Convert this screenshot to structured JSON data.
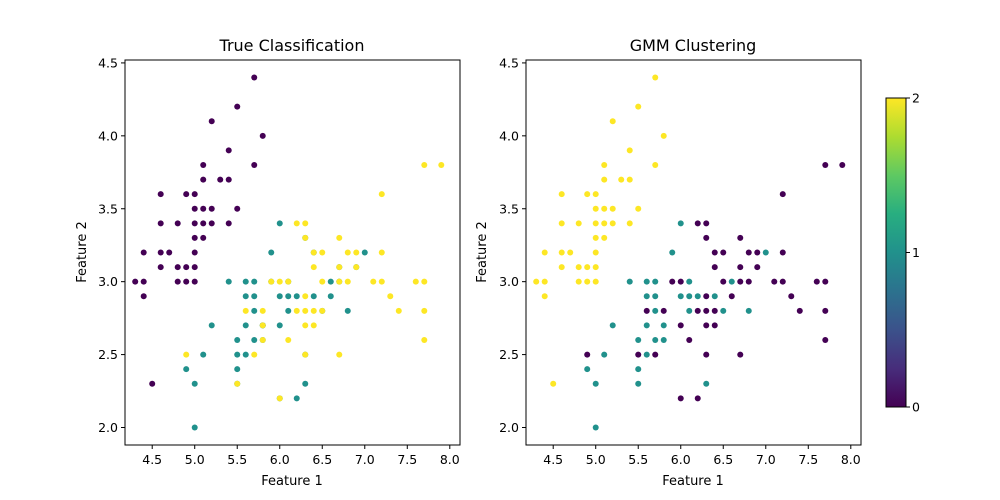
{
  "colormap": {
    "c0": "#440154",
    "c1": "#21918c",
    "c2": "#fde725",
    "ticks": [
      "0",
      "1",
      "2"
    ]
  },
  "chart_data": [
    {
      "type": "scatter",
      "title": "True Classification",
      "xlabel": "Feature 1",
      "ylabel": "Feature 2",
      "xlim": [
        4.18,
        8.12
      ],
      "ylim": [
        1.88,
        4.52
      ],
      "xticks": [
        "4.5",
        "5.0",
        "5.5",
        "6.0",
        "6.5",
        "7.0",
        "7.5",
        "8.0"
      ],
      "yticks": [
        "2.0",
        "2.5",
        "3.0",
        "3.5",
        "4.0",
        "4.5"
      ],
      "points": [
        [
          4.3,
          3.0,
          0
        ],
        [
          4.4,
          3.2,
          0
        ],
        [
          4.4,
          3.0,
          0
        ],
        [
          4.4,
          2.9,
          0
        ],
        [
          4.5,
          2.3,
          0
        ],
        [
          4.6,
          3.6,
          0
        ],
        [
          4.6,
          3.4,
          0
        ],
        [
          4.6,
          3.2,
          0
        ],
        [
          4.6,
          3.1,
          0
        ],
        [
          4.7,
          3.2,
          0
        ],
        [
          4.8,
          3.4,
          0
        ],
        [
          4.8,
          3.1,
          0
        ],
        [
          4.8,
          3.0,
          0
        ],
        [
          4.9,
          3.1,
          0
        ],
        [
          4.9,
          3.0,
          0
        ],
        [
          5.0,
          3.6,
          0
        ],
        [
          5.0,
          3.5,
          0
        ],
        [
          5.0,
          3.4,
          0
        ],
        [
          5.0,
          3.3,
          0
        ],
        [
          5.0,
          3.2,
          0
        ],
        [
          5.0,
          3.0,
          0
        ],
        [
          5.1,
          3.8,
          0
        ],
        [
          5.1,
          3.7,
          0
        ],
        [
          5.1,
          3.5,
          0
        ],
        [
          5.1,
          3.4,
          0
        ],
        [
          5.1,
          3.3,
          0
        ],
        [
          5.2,
          4.1,
          0
        ],
        [
          5.2,
          3.5,
          0
        ],
        [
          5.2,
          3.4,
          0
        ],
        [
          5.3,
          3.7,
          0
        ],
        [
          5.4,
          3.9,
          0
        ],
        [
          5.4,
          3.7,
          0
        ],
        [
          5.4,
          3.4,
          0
        ],
        [
          5.5,
          4.2,
          0
        ],
        [
          5.5,
          3.5,
          0
        ],
        [
          5.7,
          4.4,
          0
        ],
        [
          5.7,
          3.8,
          0
        ],
        [
          5.8,
          4.0,
          0
        ],
        [
          5.0,
          3.1,
          0
        ],
        [
          4.9,
          3.6,
          0
        ],
        [
          4.9,
          2.4,
          1
        ],
        [
          5.0,
          2.0,
          1
        ],
        [
          5.0,
          2.3,
          1
        ],
        [
          5.1,
          2.5,
          1
        ],
        [
          5.2,
          2.7,
          1
        ],
        [
          5.4,
          3.0,
          1
        ],
        [
          5.5,
          2.3,
          1
        ],
        [
          5.5,
          2.4,
          1
        ],
        [
          5.5,
          2.5,
          1
        ],
        [
          5.5,
          2.6,
          1
        ],
        [
          5.6,
          2.5,
          1
        ],
        [
          5.6,
          2.7,
          1
        ],
        [
          5.6,
          2.9,
          1
        ],
        [
          5.6,
          3.0,
          1
        ],
        [
          5.7,
          2.6,
          1
        ],
        [
          5.7,
          2.8,
          1
        ],
        [
          5.7,
          2.9,
          1
        ],
        [
          5.7,
          3.0,
          1
        ],
        [
          5.8,
          2.6,
          1
        ],
        [
          5.8,
          2.7,
          1
        ],
        [
          5.9,
          3.0,
          1
        ],
        [
          5.9,
          3.2,
          1
        ],
        [
          6.0,
          2.2,
          1
        ],
        [
          6.0,
          2.7,
          1
        ],
        [
          6.0,
          2.9,
          1
        ],
        [
          6.0,
          3.4,
          1
        ],
        [
          6.1,
          2.8,
          1
        ],
        [
          6.1,
          2.9,
          1
        ],
        [
          6.1,
          3.0,
          1
        ],
        [
          6.2,
          2.2,
          1
        ],
        [
          6.2,
          2.9,
          1
        ],
        [
          6.3,
          2.3,
          1
        ],
        [
          6.3,
          2.5,
          1
        ],
        [
          6.3,
          3.3,
          1
        ],
        [
          6.4,
          2.9,
          1
        ],
        [
          6.4,
          3.2,
          1
        ],
        [
          6.5,
          2.8,
          1
        ],
        [
          6.6,
          2.9,
          1
        ],
        [
          6.6,
          3.0,
          1
        ],
        [
          6.7,
          3.0,
          1
        ],
        [
          6.7,
          3.1,
          1
        ],
        [
          6.8,
          2.8,
          1
        ],
        [
          6.9,
          3.1,
          1
        ],
        [
          7.0,
          3.2,
          1
        ],
        [
          5.8,
          2.7,
          1
        ],
        [
          5.5,
          2.3,
          2
        ],
        [
          4.9,
          2.5,
          2
        ],
        [
          5.6,
          2.8,
          2
        ],
        [
          5.7,
          2.5,
          2
        ],
        [
          5.8,
          2.7,
          2
        ],
        [
          5.8,
          2.8,
          2
        ],
        [
          6.0,
          2.2,
          2
        ],
        [
          6.0,
          3.0,
          2
        ],
        [
          6.1,
          2.6,
          2
        ],
        [
          6.1,
          3.0,
          2
        ],
        [
          6.2,
          2.8,
          2
        ],
        [
          6.2,
          3.4,
          2
        ],
        [
          6.3,
          2.5,
          2
        ],
        [
          6.3,
          2.7,
          2
        ],
        [
          6.3,
          2.8,
          2
        ],
        [
          6.3,
          2.9,
          2
        ],
        [
          6.3,
          3.3,
          2
        ],
        [
          6.3,
          3.4,
          2
        ],
        [
          6.4,
          2.7,
          2
        ],
        [
          6.4,
          2.8,
          2
        ],
        [
          6.4,
          3.1,
          2
        ],
        [
          6.4,
          3.2,
          2
        ],
        [
          6.5,
          3.0,
          2
        ],
        [
          6.5,
          3.2,
          2
        ],
        [
          6.7,
          2.5,
          2
        ],
        [
          6.7,
          3.0,
          2
        ],
        [
          6.7,
          3.1,
          2
        ],
        [
          6.7,
          3.3,
          2
        ],
        [
          6.8,
          3.0,
          2
        ],
        [
          6.8,
          3.2,
          2
        ],
        [
          6.9,
          3.1,
          2
        ],
        [
          6.9,
          3.2,
          2
        ],
        [
          7.1,
          3.0,
          2
        ],
        [
          7.2,
          3.0,
          2
        ],
        [
          7.2,
          3.2,
          2
        ],
        [
          7.2,
          3.6,
          2
        ],
        [
          7.3,
          2.9,
          2
        ],
        [
          7.4,
          2.8,
          2
        ],
        [
          7.6,
          3.0,
          2
        ],
        [
          7.7,
          2.6,
          2
        ],
        [
          7.7,
          2.8,
          2
        ],
        [
          7.7,
          3.0,
          2
        ],
        [
          7.7,
          3.8,
          2
        ],
        [
          7.9,
          3.8,
          2
        ],
        [
          5.9,
          3.0,
          2
        ],
        [
          6.5,
          2.8,
          2
        ],
        [
          5.8,
          2.6,
          2
        ]
      ]
    },
    {
      "type": "scatter",
      "title": "GMM Clustering",
      "xlabel": "Feature 1",
      "ylabel": "Feature 2",
      "xlim": [
        4.18,
        8.12
      ],
      "ylim": [
        1.88,
        4.52
      ],
      "xticks": [
        "4.5",
        "5.0",
        "5.5",
        "6.0",
        "6.5",
        "7.0",
        "7.5",
        "8.0"
      ],
      "yticks": [
        "2.0",
        "2.5",
        "3.0",
        "3.5",
        "4.0",
        "4.5"
      ],
      "points": [
        [
          4.3,
          3.0,
          2
        ],
        [
          4.4,
          3.2,
          2
        ],
        [
          4.4,
          3.0,
          2
        ],
        [
          4.4,
          2.9,
          2
        ],
        [
          4.5,
          2.3,
          2
        ],
        [
          4.6,
          3.6,
          2
        ],
        [
          4.6,
          3.4,
          2
        ],
        [
          4.6,
          3.2,
          2
        ],
        [
          4.6,
          3.1,
          2
        ],
        [
          4.7,
          3.2,
          2
        ],
        [
          4.8,
          3.4,
          2
        ],
        [
          4.8,
          3.1,
          2
        ],
        [
          4.8,
          3.0,
          2
        ],
        [
          4.9,
          3.1,
          2
        ],
        [
          4.9,
          3.0,
          2
        ],
        [
          5.0,
          3.6,
          2
        ],
        [
          5.0,
          3.5,
          2
        ],
        [
          5.0,
          3.4,
          2
        ],
        [
          5.0,
          3.3,
          2
        ],
        [
          5.0,
          3.2,
          2
        ],
        [
          5.0,
          3.0,
          2
        ],
        [
          5.1,
          3.8,
          2
        ],
        [
          5.1,
          3.7,
          2
        ],
        [
          5.1,
          3.5,
          2
        ],
        [
          5.1,
          3.4,
          2
        ],
        [
          5.1,
          3.3,
          2
        ],
        [
          5.2,
          4.1,
          2
        ],
        [
          5.2,
          3.5,
          2
        ],
        [
          5.2,
          3.4,
          2
        ],
        [
          5.3,
          3.7,
          2
        ],
        [
          5.4,
          3.9,
          2
        ],
        [
          5.4,
          3.7,
          2
        ],
        [
          5.4,
          3.4,
          2
        ],
        [
          5.5,
          4.2,
          2
        ],
        [
          5.5,
          3.5,
          2
        ],
        [
          5.7,
          4.4,
          2
        ],
        [
          5.7,
          3.8,
          2
        ],
        [
          5.8,
          4.0,
          2
        ],
        [
          5.0,
          3.1,
          2
        ],
        [
          4.9,
          3.6,
          2
        ],
        [
          5.0,
          2.0,
          1
        ],
        [
          5.0,
          2.3,
          1
        ],
        [
          5.1,
          2.5,
          1
        ],
        [
          5.2,
          2.7,
          1
        ],
        [
          5.4,
          3.0,
          1
        ],
        [
          5.5,
          2.3,
          1
        ],
        [
          5.5,
          2.4,
          1
        ],
        [
          5.5,
          2.6,
          1
        ],
        [
          5.6,
          2.5,
          1
        ],
        [
          5.6,
          2.7,
          1
        ],
        [
          5.6,
          2.9,
          1
        ],
        [
          5.6,
          3.0,
          1
        ],
        [
          5.7,
          2.6,
          1
        ],
        [
          5.7,
          2.8,
          1
        ],
        [
          5.7,
          2.9,
          1
        ],
        [
          5.7,
          3.0,
          1
        ],
        [
          5.8,
          2.7,
          1
        ],
        [
          5.9,
          3.2,
          1
        ],
        [
          6.0,
          2.9,
          1
        ],
        [
          6.0,
          3.4,
          1
        ],
        [
          6.1,
          2.8,
          1
        ],
        [
          6.1,
          2.9,
          1
        ],
        [
          6.1,
          3.0,
          1
        ],
        [
          6.2,
          2.9,
          1
        ],
        [
          6.3,
          2.3,
          1
        ],
        [
          6.4,
          2.9,
          1
        ],
        [
          6.5,
          2.8,
          1
        ],
        [
          6.6,
          3.0,
          1
        ],
        [
          6.8,
          2.8,
          1
        ],
        [
          7.0,
          3.2,
          1
        ],
        [
          5.8,
          2.6,
          1
        ],
        [
          4.9,
          2.4,
          1
        ],
        [
          4.9,
          2.5,
          0
        ],
        [
          5.5,
          2.5,
          0
        ],
        [
          5.6,
          2.8,
          0
        ],
        [
          5.7,
          2.5,
          0
        ],
        [
          5.8,
          2.8,
          0
        ],
        [
          5.9,
          3.0,
          0
        ],
        [
          6.0,
          2.2,
          0
        ],
        [
          6.0,
          2.7,
          0
        ],
        [
          6.0,
          3.0,
          0
        ],
        [
          6.1,
          2.6,
          0
        ],
        [
          6.2,
          2.2,
          0
        ],
        [
          6.2,
          2.8,
          0
        ],
        [
          6.2,
          3.4,
          0
        ],
        [
          6.3,
          2.5,
          0
        ],
        [
          6.3,
          2.7,
          0
        ],
        [
          6.3,
          2.8,
          0
        ],
        [
          6.3,
          2.9,
          0
        ],
        [
          6.3,
          3.3,
          0
        ],
        [
          6.3,
          3.4,
          0
        ],
        [
          6.4,
          2.7,
          0
        ],
        [
          6.4,
          2.8,
          0
        ],
        [
          6.4,
          3.1,
          0
        ],
        [
          6.4,
          3.2,
          0
        ],
        [
          6.5,
          3.0,
          0
        ],
        [
          6.5,
          3.2,
          0
        ],
        [
          6.6,
          2.9,
          0
        ],
        [
          6.7,
          2.5,
          0
        ],
        [
          6.7,
          3.0,
          0
        ],
        [
          6.7,
          3.1,
          0
        ],
        [
          6.7,
          3.3,
          0
        ],
        [
          6.8,
          3.0,
          0
        ],
        [
          6.8,
          3.2,
          0
        ],
        [
          6.9,
          3.1,
          0
        ],
        [
          6.9,
          3.2,
          0
        ],
        [
          7.1,
          3.0,
          0
        ],
        [
          7.2,
          3.0,
          0
        ],
        [
          7.2,
          3.2,
          0
        ],
        [
          7.2,
          3.6,
          0
        ],
        [
          7.3,
          2.9,
          0
        ],
        [
          7.4,
          2.8,
          0
        ],
        [
          7.6,
          3.0,
          0
        ],
        [
          7.7,
          2.6,
          0
        ],
        [
          7.7,
          2.8,
          0
        ],
        [
          7.7,
          3.0,
          0
        ],
        [
          7.7,
          3.8,
          0
        ],
        [
          7.9,
          3.8,
          0
        ]
      ]
    }
  ]
}
